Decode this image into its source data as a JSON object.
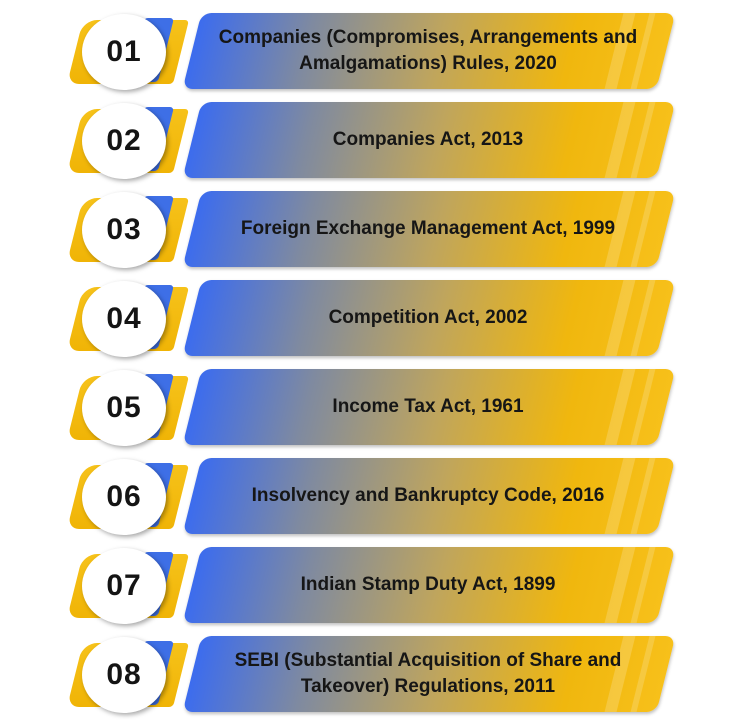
{
  "items": [
    {
      "number": "01",
      "label": "Companies (Compromises, Arrangements and Amalgamations) Rules, 2020"
    },
    {
      "number": "02",
      "label": "Companies Act, 2013"
    },
    {
      "number": "03",
      "label": "Foreign Exchange Management Act, 1999"
    },
    {
      "number": "04",
      "label": "Competition Act, 2002"
    },
    {
      "number": "05",
      "label": "Income Tax Act, 1961"
    },
    {
      "number": "06",
      "label": "Insolvency and Bankruptcy Code, 2016"
    },
    {
      "number": "07",
      "label": "Indian Stamp Duty Act, 1899"
    },
    {
      "number": "08",
      "label": "SEBI (Substantial Acquisition of Share and Takeover) Regulations, 2011"
    }
  ],
  "colors": {
    "accent_yellow": "#f6c21a",
    "accent_blue": "#3e6fe6",
    "text": "#161616"
  }
}
